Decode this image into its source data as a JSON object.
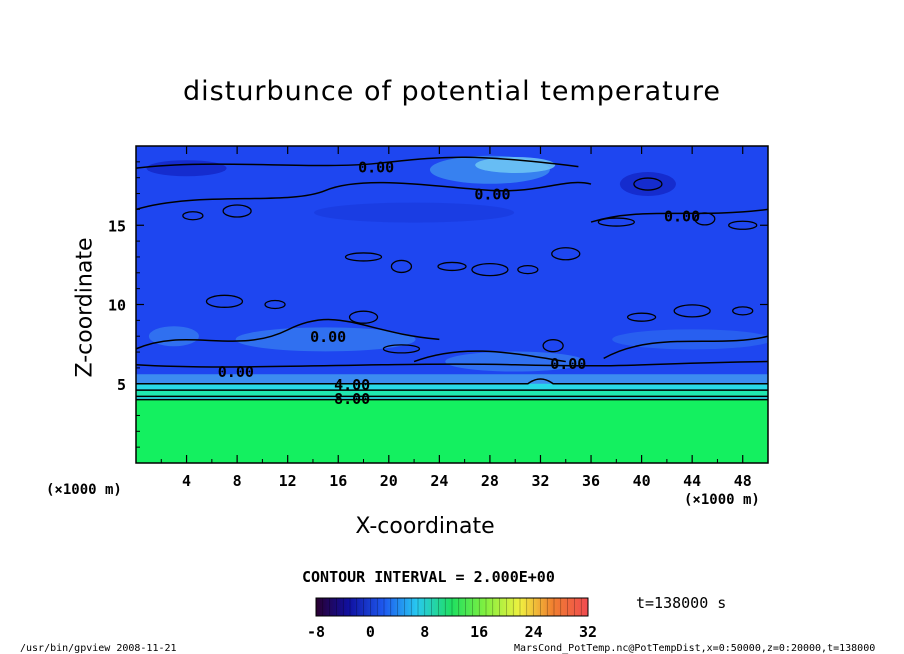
{
  "chart_data": {
    "type": "heatmap",
    "title": "disturbunce of potential temperature",
    "xlabel": "X-coordinate",
    "ylabel": "Z-coordinate",
    "x_unit": "(×1000 m)",
    "y_unit": "(×1000 m)",
    "xlim": [
      0,
      50
    ],
    "ylim": [
      0,
      20
    ],
    "x_ticks": [
      4,
      8,
      12,
      16,
      20,
      24,
      28,
      32,
      36,
      40,
      44,
      48
    ],
    "y_ticks": [
      5,
      10,
      15
    ],
    "contour_interval_label": "CONTOUR INTERVAL = 2.000E+00",
    "contour_labels": [
      {
        "text": "0.00",
        "x": 19,
        "z": 18.7
      },
      {
        "text": "0.00",
        "x": 28.2,
        "z": 17.0
      },
      {
        "text": "0.00",
        "x": 43.2,
        "z": 15.6
      },
      {
        "text": "0.00",
        "x": 15.2,
        "z": 8.0
      },
      {
        "text": "0.00",
        "x": 7.9,
        "z": 5.8
      },
      {
        "text": "0.00",
        "x": 34.2,
        "z": 6.3
      },
      {
        "text": "4.00",
        "x": 17.1,
        "z": 5.0
      },
      {
        "text": "8.00",
        "x": 17.1,
        "z": 4.1
      }
    ],
    "colorbar": {
      "ticks": [
        -8,
        0,
        8,
        16,
        24,
        32
      ],
      "range": [
        -8,
        32
      ]
    },
    "layers": [
      {
        "z_bottom": 0,
        "z_top": 4.0,
        "value": 14
      },
      {
        "z_bottom": 4.0,
        "z_top": 5.5,
        "value": 4
      },
      {
        "z_bottom": 5.5,
        "z_top": 20,
        "value": -2
      }
    ]
  },
  "time_label": "t=138000 s",
  "footer": {
    "left": "/usr/bin/gpview  2008-11-21",
    "right": "MarsCond_PotTemp.nc@PotTempDist,x=0:50000,z=0:20000,t=138000"
  },
  "colors": {
    "upper_blue": "#1e46f0",
    "dark_blue": "#1428c8",
    "light_blue": "#3c8cf0",
    "cyan": "#28d8e8",
    "lower_green": "#14f060",
    "axis": "#000000"
  }
}
